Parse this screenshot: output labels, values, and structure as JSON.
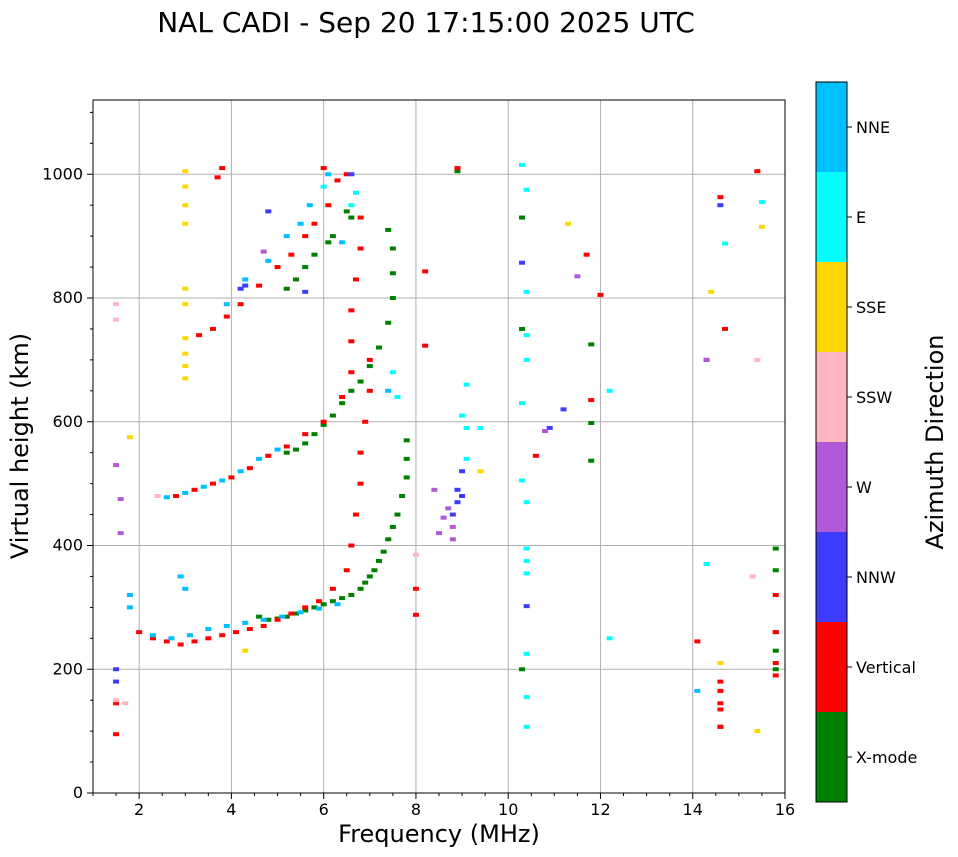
{
  "chart_data": {
    "type": "scatter",
    "title": "NAL CADI - Sep 20 17:15:00 2025 UTC",
    "xlabel": "Frequency (MHz)",
    "ylabel": "Virtual height (km)",
    "xlim": [
      1,
      16
    ],
    "ylim": [
      0,
      1120
    ],
    "xticks": [
      2,
      4,
      6,
      8,
      10,
      12,
      14,
      16
    ],
    "yticks": [
      0,
      200,
      400,
      600,
      800,
      1000
    ],
    "grid": true,
    "colorbar": {
      "title": "Azimuth Direction",
      "categories": [
        {
          "name": "X-mode",
          "color": "#008000"
        },
        {
          "name": "Vertical",
          "color": "#ff0000"
        },
        {
          "name": "NNW",
          "color": "#3c3cff"
        },
        {
          "name": "W",
          "color": "#b159d8"
        },
        {
          "name": "SSW",
          "color": "#ffb6c1"
        },
        {
          "name": "SSE",
          "color": "#ffd700"
        },
        {
          "name": "E",
          "color": "#00ffff"
        },
        {
          "name": "NNE",
          "color": "#00bfff"
        }
      ]
    },
    "series": [
      {
        "name": "X-mode",
        "points": [
          [
            4.6,
            285
          ],
          [
            4.8,
            280
          ],
          [
            5.0,
            282
          ],
          [
            5.2,
            285
          ],
          [
            5.4,
            290
          ],
          [
            5.6,
            295
          ],
          [
            5.8,
            300
          ],
          [
            6.0,
            305
          ],
          [
            6.2,
            310
          ],
          [
            6.4,
            315
          ],
          [
            6.6,
            320
          ],
          [
            6.8,
            330
          ],
          [
            6.9,
            340
          ],
          [
            7.0,
            350
          ],
          [
            7.1,
            360
          ],
          [
            7.2,
            375
          ],
          [
            7.3,
            390
          ],
          [
            7.4,
            410
          ],
          [
            7.5,
            430
          ],
          [
            7.6,
            450
          ],
          [
            7.7,
            480
          ],
          [
            7.8,
            510
          ],
          [
            7.8,
            540
          ],
          [
            7.8,
            570
          ],
          [
            5.2,
            550
          ],
          [
            5.4,
            555
          ],
          [
            5.6,
            565
          ],
          [
            5.8,
            580
          ],
          [
            6.0,
            595
          ],
          [
            6.2,
            610
          ],
          [
            6.4,
            630
          ],
          [
            6.6,
            650
          ],
          [
            6.8,
            665
          ],
          [
            7.0,
            690
          ],
          [
            7.2,
            720
          ],
          [
            7.4,
            760
          ],
          [
            7.5,
            800
          ],
          [
            7.5,
            840
          ],
          [
            7.5,
            880
          ],
          [
            7.4,
            910
          ],
          [
            5.2,
            815
          ],
          [
            5.4,
            830
          ],
          [
            5.6,
            850
          ],
          [
            5.8,
            870
          ],
          [
            6.1,
            890
          ],
          [
            6.2,
            900
          ],
          [
            6.5,
            940
          ],
          [
            6.6,
            930
          ],
          [
            8.9,
            1005
          ],
          [
            10.3,
            930
          ],
          [
            10.3,
            750
          ],
          [
            10.3,
            200
          ],
          [
            11.8,
            725
          ],
          [
            11.8,
            598
          ],
          [
            11.8,
            537
          ],
          [
            14.6,
            107
          ],
          [
            15.8,
            200
          ],
          [
            15.8,
            230
          ],
          [
            15.8,
            260
          ],
          [
            15.8,
            360
          ],
          [
            15.8,
            395
          ]
        ]
      },
      {
        "name": "Vertical",
        "points": [
          [
            1.5,
            145
          ],
          [
            1.5,
            95
          ],
          [
            2.0,
            260
          ],
          [
            2.3,
            250
          ],
          [
            2.6,
            245
          ],
          [
            2.9,
            240
          ],
          [
            3.2,
            245
          ],
          [
            3.5,
            250
          ],
          [
            3.8,
            255
          ],
          [
            4.1,
            260
          ],
          [
            4.4,
            265
          ],
          [
            4.7,
            270
          ],
          [
            5.0,
            280
          ],
          [
            5.3,
            290
          ],
          [
            5.6,
            300
          ],
          [
            5.9,
            310
          ],
          [
            6.2,
            330
          ],
          [
            6.5,
            360
          ],
          [
            6.6,
            400
          ],
          [
            6.7,
            450
          ],
          [
            6.8,
            500
          ],
          [
            6.8,
            550
          ],
          [
            6.9,
            600
          ],
          [
            7.0,
            650
          ],
          [
            7.0,
            700
          ],
          [
            2.8,
            480
          ],
          [
            3.2,
            490
          ],
          [
            3.6,
            500
          ],
          [
            4.0,
            510
          ],
          [
            4.4,
            525
          ],
          [
            4.8,
            545
          ],
          [
            5.2,
            560
          ],
          [
            5.6,
            580
          ],
          [
            6.0,
            600
          ],
          [
            6.4,
            640
          ],
          [
            6.6,
            680
          ],
          [
            6.6,
            730
          ],
          [
            6.6,
            780
          ],
          [
            6.7,
            830
          ],
          [
            6.8,
            880
          ],
          [
            6.8,
            930
          ],
          [
            3.3,
            740
          ],
          [
            3.6,
            750
          ],
          [
            3.9,
            770
          ],
          [
            4.2,
            790
          ],
          [
            4.6,
            820
          ],
          [
            5.0,
            850
          ],
          [
            5.3,
            870
          ],
          [
            5.6,
            900
          ],
          [
            5.8,
            920
          ],
          [
            6.1,
            950
          ],
          [
            6.3,
            990
          ],
          [
            3.8,
            1010
          ],
          [
            3.7,
            995
          ],
          [
            6.0,
            1010
          ],
          [
            6.5,
            1000
          ],
          [
            8.2,
            843
          ],
          [
            8.2,
            723
          ],
          [
            8.0,
            330
          ],
          [
            8.0,
            288
          ],
          [
            8.9,
            1010
          ],
          [
            10.6,
            545
          ],
          [
            11.7,
            870
          ],
          [
            12.0,
            805
          ],
          [
            11.8,
            635
          ],
          [
            14.1,
            245
          ],
          [
            14.6,
            180
          ],
          [
            14.6,
            165
          ],
          [
            14.6,
            145
          ],
          [
            14.6,
            135
          ],
          [
            14.6,
            107
          ],
          [
            14.6,
            963
          ],
          [
            14.7,
            750
          ],
          [
            15.4,
            1005
          ],
          [
            15.8,
            190
          ],
          [
            15.8,
            210
          ],
          [
            15.8,
            260
          ],
          [
            15.8,
            320
          ]
        ]
      },
      {
        "name": "NNW",
        "points": [
          [
            1.5,
            180
          ],
          [
            1.5,
            200
          ],
          [
            4.3,
            820
          ],
          [
            4.2,
            815
          ],
          [
            4.8,
            940
          ],
          [
            5.6,
            810
          ],
          [
            6.6,
            1000
          ],
          [
            8.8,
            450
          ],
          [
            8.9,
            470
          ],
          [
            8.9,
            490
          ],
          [
            9.0,
            520
          ],
          [
            9.0,
            480
          ],
          [
            10.3,
            857
          ],
          [
            10.4,
            302
          ],
          [
            10.9,
            590
          ],
          [
            11.2,
            620
          ],
          [
            14.6,
            950
          ],
          [
            14.3,
            700
          ]
        ]
      },
      {
        "name": "W",
        "points": [
          [
            1.5,
            530
          ],
          [
            1.6,
            475
          ],
          [
            1.6,
            420
          ],
          [
            4.7,
            875
          ],
          [
            8.5,
            420
          ],
          [
            8.6,
            445
          ],
          [
            8.7,
            460
          ],
          [
            8.8,
            430
          ],
          [
            8.8,
            410
          ],
          [
            8.4,
            490
          ],
          [
            10.8,
            585
          ],
          [
            11.5,
            835
          ],
          [
            14.3,
            700
          ]
        ]
      },
      {
        "name": "SSW",
        "points": [
          [
            1.5,
            790
          ],
          [
            1.5,
            765
          ],
          [
            1.5,
            150
          ],
          [
            1.7,
            145
          ],
          [
            2.4,
            480
          ],
          [
            8.0,
            385
          ],
          [
            15.3,
            350
          ],
          [
            15.4,
            700
          ]
        ]
      },
      {
        "name": "SSE",
        "points": [
          [
            3.0,
            920
          ],
          [
            3.0,
            950
          ],
          [
            3.0,
            980
          ],
          [
            3.0,
            1005
          ],
          [
            3.0,
            790
          ],
          [
            3.0,
            815
          ],
          [
            3.0,
            670
          ],
          [
            3.0,
            690
          ],
          [
            3.0,
            710
          ],
          [
            3.0,
            735
          ],
          [
            1.8,
            575
          ],
          [
            4.3,
            230
          ],
          [
            9.4,
            520
          ],
          [
            11.3,
            920
          ],
          [
            14.4,
            810
          ],
          [
            14.6,
            210
          ],
          [
            15.4,
            100
          ],
          [
            15.5,
            915
          ]
        ]
      },
      {
        "name": "E",
        "points": [
          [
            6.6,
            950
          ],
          [
            6.7,
            970
          ],
          [
            6.0,
            980
          ],
          [
            7.5,
            680
          ],
          [
            7.6,
            640
          ],
          [
            9.1,
            660
          ],
          [
            9.0,
            610
          ],
          [
            9.1,
            590
          ],
          [
            9.1,
            540
          ],
          [
            9.4,
            590
          ],
          [
            10.3,
            1015
          ],
          [
            10.4,
            975
          ],
          [
            10.4,
            810
          ],
          [
            10.4,
            740
          ],
          [
            10.4,
            700
          ],
          [
            10.3,
            630
          ],
          [
            10.4,
            470
          ],
          [
            10.3,
            505
          ],
          [
            10.4,
            395
          ],
          [
            10.4,
            375
          ],
          [
            10.4,
            355
          ],
          [
            10.4,
            225
          ],
          [
            10.4,
            155
          ],
          [
            10.4,
            107
          ],
          [
            12.2,
            650
          ],
          [
            12.2,
            250
          ],
          [
            14.3,
            370
          ],
          [
            14.7,
            888
          ],
          [
            15.5,
            955
          ]
        ]
      },
      {
        "name": "NNE",
        "points": [
          [
            1.8,
            320
          ],
          [
            1.8,
            300
          ],
          [
            2.3,
            255
          ],
          [
            2.7,
            250
          ],
          [
            3.1,
            255
          ],
          [
            3.5,
            265
          ],
          [
            3.9,
            270
          ],
          [
            4.3,
            275
          ],
          [
            4.7,
            280
          ],
          [
            5.1,
            285
          ],
          [
            5.5,
            292
          ],
          [
            5.9,
            298
          ],
          [
            6.3,
            305
          ],
          [
            2.6,
            478
          ],
          [
            3.0,
            485
          ],
          [
            3.4,
            495
          ],
          [
            3.8,
            505
          ],
          [
            4.2,
            520
          ],
          [
            4.6,
            540
          ],
          [
            5.0,
            555
          ],
          [
            3.9,
            790
          ],
          [
            4.3,
            830
          ],
          [
            4.8,
            860
          ],
          [
            5.2,
            900
          ],
          [
            5.5,
            920
          ],
          [
            5.7,
            950
          ],
          [
            6.1,
            1000
          ],
          [
            6.4,
            890
          ],
          [
            3.0,
            330
          ],
          [
            2.9,
            350
          ],
          [
            7.4,
            650
          ],
          [
            14.1,
            165
          ]
        ]
      }
    ]
  }
}
